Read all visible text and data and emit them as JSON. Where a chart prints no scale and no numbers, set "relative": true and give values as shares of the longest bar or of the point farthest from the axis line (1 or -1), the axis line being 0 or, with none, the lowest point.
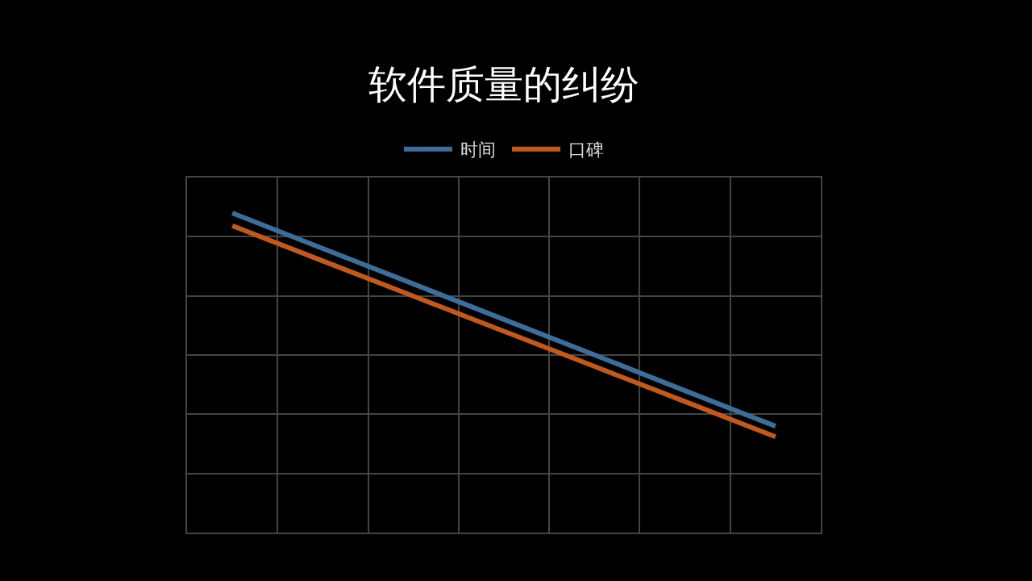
{
  "chart_data": {
    "type": "line",
    "title": "软件质量的纠纷",
    "relative": true,
    "categories": [
      null,
      null,
      null,
      null,
      null,
      null,
      null
    ],
    "series": [
      {
        "name": "时间",
        "color": "#3d6d99",
        "values": [
          1,
          0.889,
          0.778,
          0.667,
          0.556,
          0.444,
          0.333
        ]
      },
      {
        "name": "口碑",
        "color": "#c05a1c",
        "values": [
          0.96,
          0.85,
          0.74,
          0.63,
          0.52,
          0.41,
          0.3
        ]
      }
    ],
    "legend": "top",
    "grid": true,
    "tick_labels": false,
    "marker": "none",
    "line_style": "solid"
  }
}
